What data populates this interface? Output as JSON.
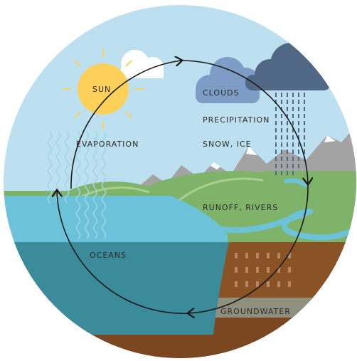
{
  "nodes": [
    {
      "label": "SUN"
    },
    {
      "label": "CLOUDS"
    },
    {
      "label": "PRECIPITATION"
    },
    {
      "label": "SNOW, ICE"
    },
    {
      "label": "EVAPORATION"
    },
    {
      "label": "RUNOFF, RIVERS"
    },
    {
      "label": "OCEANS"
    },
    {
      "label": "GROUNDWATER"
    }
  ]
}
